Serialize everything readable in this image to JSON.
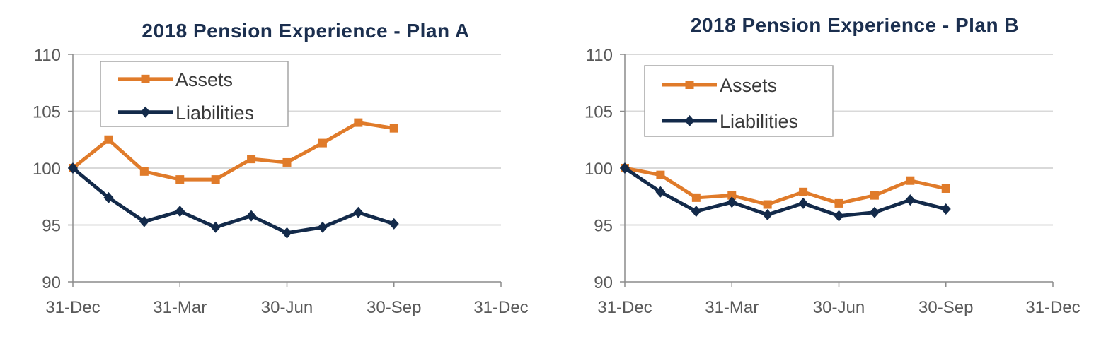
{
  "colors": {
    "assets": "#e07b2a",
    "liabilities": "#132a4a",
    "grid": "#d9d9d9",
    "axis": "#8c8c8c"
  },
  "chart_data": [
    {
      "type": "line",
      "title": "2018 Pension Experience - Plan A",
      "x_tick_labels": [
        "31-Dec",
        "31-Mar",
        "30-Jun",
        "30-Sep",
        "31-Dec"
      ],
      "x_range": [
        0,
        12
      ],
      "y_ticks": [
        90,
        95,
        100,
        105,
        110
      ],
      "ylim": [
        90,
        110
      ],
      "legend_position": "top-left",
      "grid": "horizontal",
      "series": [
        {
          "name": "Assets",
          "marker": "square",
          "x": [
            0,
            1,
            2,
            3,
            4,
            5,
            6,
            7,
            8,
            9
          ],
          "values": [
            100,
            102.5,
            99.7,
            99.0,
            99.0,
            100.8,
            100.5,
            102.2,
            104.0,
            103.5
          ]
        },
        {
          "name": "Liabilities",
          "marker": "diamond",
          "x": [
            0,
            1,
            2,
            3,
            4,
            5,
            6,
            7,
            8,
            9
          ],
          "values": [
            100,
            97.4,
            95.3,
            96.2,
            94.8,
            95.8,
            94.3,
            94.8,
            96.1,
            95.1
          ]
        }
      ]
    },
    {
      "type": "line",
      "title": "2018 Pension Experience - Plan B",
      "x_tick_labels": [
        "31-Dec",
        "31-Mar",
        "30-Jun",
        "30-Sep",
        "31-Dec"
      ],
      "x_range": [
        0,
        12
      ],
      "y_ticks": [
        90,
        95,
        100,
        105,
        110
      ],
      "ylim": [
        90,
        110
      ],
      "legend_position": "top-left",
      "grid": "horizontal",
      "series": [
        {
          "name": "Assets",
          "marker": "square",
          "x": [
            0,
            1,
            2,
            3,
            4,
            5,
            6,
            7,
            8,
            9
          ],
          "values": [
            100,
            99.4,
            97.4,
            97.6,
            96.8,
            97.9,
            96.9,
            97.6,
            98.9,
            98.2
          ]
        },
        {
          "name": "Liabilities",
          "marker": "diamond",
          "x": [
            0,
            1,
            2,
            3,
            4,
            5,
            6,
            7,
            8,
            9
          ],
          "values": [
            100,
            97.9,
            96.2,
            97.0,
            95.9,
            96.9,
            95.8,
            96.1,
            97.2,
            96.4
          ]
        }
      ]
    }
  ]
}
